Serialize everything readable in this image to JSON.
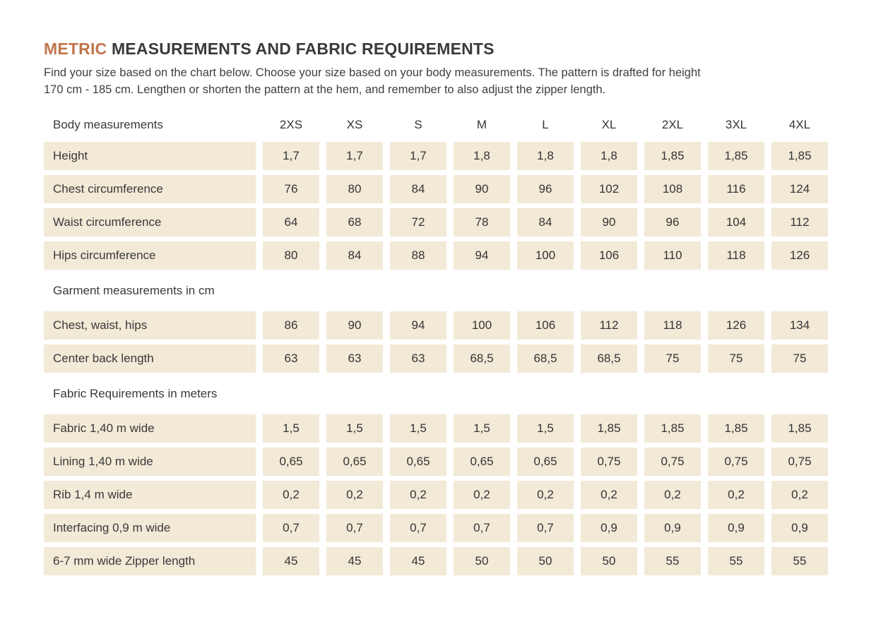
{
  "page": {
    "title_accent": "METRIC",
    "title_rest": " MEASUREMENTS AND FABRIC REQUIREMENTS",
    "intro_line1": "Find your size based on the chart below. Choose your size based on your body measurements. The pattern is drafted for height",
    "intro_line2": "170 cm - 185 cm.  Lengthen or shorten the pattern at the hem, and remember to also adjust the zipper length."
  },
  "colors": {
    "accent": "#c0754b",
    "cell_background": "#f2e9d7",
    "text": "#3a3a3a"
  },
  "table": {
    "header_label": "Body measurements",
    "sizes": [
      "2XS",
      "XS",
      "S",
      "M",
      "L",
      "XL",
      "2XL",
      "3XL",
      "4XL"
    ],
    "sections": [
      {
        "heading": "",
        "rows": [
          {
            "label": "Height",
            "values": [
              "1,7",
              "1,7",
              "1,7",
              "1,8",
              "1,8",
              "1,8",
              "1,85",
              "1,85",
              "1,85"
            ]
          },
          {
            "label": "Chest circumference",
            "values": [
              "76",
              "80",
              "84",
              "90",
              "96",
              "102",
              "108",
              "116",
              "124"
            ]
          },
          {
            "label": "Waist circumference",
            "values": [
              "64",
              "68",
              "72",
              "78",
              "84",
              "90",
              "96",
              "104",
              "112"
            ]
          },
          {
            "label": "Hips circumference",
            "values": [
              "80",
              "84",
              "88",
              "94",
              "100",
              "106",
              "110",
              "118",
              "126"
            ]
          }
        ]
      },
      {
        "heading": "Garment measurements in cm",
        "rows": [
          {
            "label": "Chest, waist, hips",
            "values": [
              "86",
              "90",
              "94",
              "100",
              "106",
              "112",
              "118",
              "126",
              "134"
            ]
          },
          {
            "label": "Center back length",
            "values": [
              "63",
              "63",
              "63",
              "68,5",
              "68,5",
              "68,5",
              "75",
              "75",
              "75"
            ]
          }
        ]
      },
      {
        "heading": "Fabric Requirements in meters",
        "rows": [
          {
            "label": "Fabric 1,40 m wide",
            "values": [
              "1,5",
              "1,5",
              "1,5",
              "1,5",
              "1,5",
              "1,85",
              "1,85",
              "1,85",
              "1,85"
            ]
          },
          {
            "label": "Lining 1,40 m wide",
            "values": [
              "0,65",
              "0,65",
              "0,65",
              "0,65",
              "0,65",
              "0,75",
              "0,75",
              "0,75",
              "0,75"
            ]
          },
          {
            "label": "Rib 1,4 m wide",
            "values": [
              "0,2",
              "0,2",
              "0,2",
              "0,2",
              "0,2",
              "0,2",
              "0,2",
              "0,2",
              "0,2"
            ]
          },
          {
            "label": "Interfacing 0,9 m wide",
            "values": [
              "0,7",
              "0,7",
              "0,7",
              "0,7",
              "0,7",
              "0,9",
              "0,9",
              "0,9",
              "0,9"
            ]
          },
          {
            "label": "6-7 mm wide Zipper length",
            "values": [
              "45",
              "45",
              "45",
              "50",
              "50",
              "50",
              "55",
              "55",
              "55"
            ]
          }
        ]
      }
    ]
  }
}
